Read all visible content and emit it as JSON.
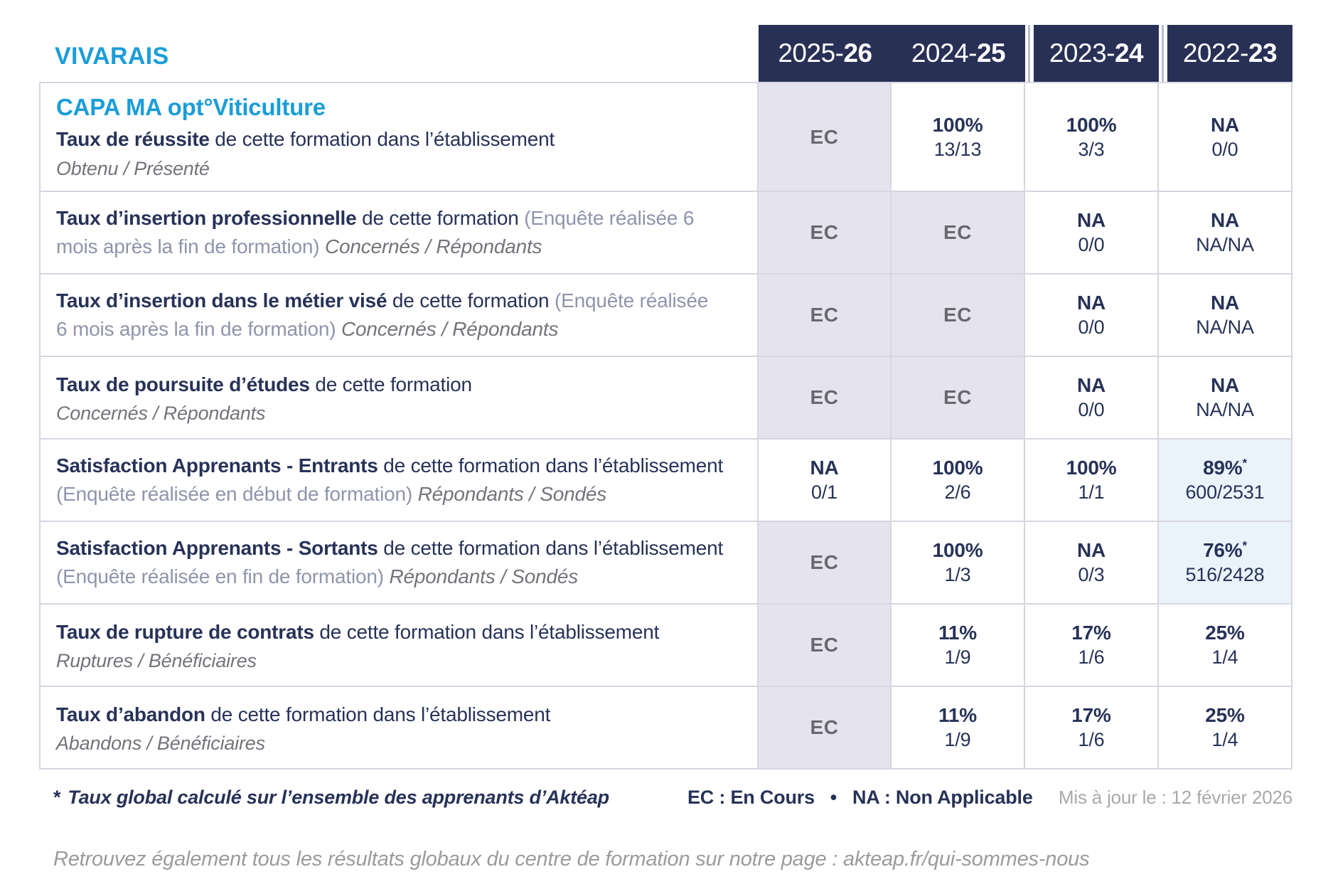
{
  "brand": "VIVARAIS",
  "colors": {
    "brand_blue": "#1b9dd9",
    "header_navy": "#293056",
    "text_navy": "#273258",
    "ec_text_gray": "#68686e",
    "ec_cell_bg": "#e5e4ee",
    "highlight_cell_bg": "#eaf3fa",
    "note_lavender": "#9094ab",
    "subtitle_gray": "#73737a",
    "border_gray": "#d6d6e0",
    "muted_gray": "#a9a9ab"
  },
  "header": {
    "years": [
      {
        "pre": "2025-",
        "bold": "26"
      },
      {
        "pre": "2024-",
        "bold": "25"
      },
      {
        "pre": "2023-",
        "bold": "24"
      },
      {
        "pre": "2022-",
        "bold": "23"
      }
    ]
  },
  "rows": [
    {
      "program": "CAPA MA opt°Viticulture",
      "title": "Taux de réussite",
      "desc": " de cette formation dans l’établissement",
      "note": "",
      "sub_inline": "",
      "sub_block": "Obtenu / Présenté",
      "cells": [
        {
          "value": "EC",
          "frac": "",
          "star": "",
          "variant": "ec"
        },
        {
          "value": "100%",
          "frac": "13/13",
          "star": "",
          "variant": "plain"
        },
        {
          "value": "100%",
          "frac": "3/3",
          "star": "",
          "variant": "plain"
        },
        {
          "value": "NA",
          "frac": "0/0",
          "star": "",
          "variant": "plain"
        }
      ]
    },
    {
      "program": "",
      "title": "Taux d’insertion professionnelle",
      "desc": " de cette formation ",
      "note": "(Enquête réalisée 6 mois après la fin de formation) ",
      "sub_inline": "Concernés / Répondants",
      "sub_block": "",
      "cells": [
        {
          "value": "EC",
          "frac": "",
          "star": "",
          "variant": "ec"
        },
        {
          "value": "EC",
          "frac": "",
          "star": "",
          "variant": "ec"
        },
        {
          "value": "NA",
          "frac": "0/0",
          "star": "",
          "variant": "plain"
        },
        {
          "value": "NA",
          "frac": "NA/NA",
          "star": "",
          "variant": "plain"
        }
      ]
    },
    {
      "program": "",
      "title": "Taux d’insertion dans le métier visé",
      "desc": " de cette formation ",
      "note": "(Enquête réalisée 6 mois après la fin de formation) ",
      "sub_inline": "Concernés / Répondants",
      "sub_block": "",
      "cells": [
        {
          "value": "EC",
          "frac": "",
          "star": "",
          "variant": "ec"
        },
        {
          "value": "EC",
          "frac": "",
          "star": "",
          "variant": "ec"
        },
        {
          "value": "NA",
          "frac": "0/0",
          "star": "",
          "variant": "plain"
        },
        {
          "value": "NA",
          "frac": "NA/NA",
          "star": "",
          "variant": "plain"
        }
      ]
    },
    {
      "program": "",
      "title": "Taux de poursuite d’études",
      "desc": " de cette formation",
      "note": "",
      "sub_inline": "",
      "sub_block": "Concernés / Répondants",
      "cells": [
        {
          "value": "EC",
          "frac": "",
          "star": "",
          "variant": "ec"
        },
        {
          "value": "EC",
          "frac": "",
          "star": "",
          "variant": "ec"
        },
        {
          "value": "NA",
          "frac": "0/0",
          "star": "",
          "variant": "plain"
        },
        {
          "value": "NA",
          "frac": "NA/NA",
          "star": "",
          "variant": "plain"
        }
      ]
    },
    {
      "program": "",
      "title": "Satisfaction Apprenants - Entrants",
      "desc": " de cette formation dans l’établissement ",
      "note": "(Enquête réalisée en début de formation) ",
      "sub_inline": "Répondants / Sondés",
      "sub_block": "",
      "cells": [
        {
          "value": "NA",
          "frac": "0/1",
          "star": "",
          "variant": "plain"
        },
        {
          "value": "100%",
          "frac": "2/6",
          "star": "",
          "variant": "plain"
        },
        {
          "value": "100%",
          "frac": "1/1",
          "star": "",
          "variant": "plain"
        },
        {
          "value": "89%",
          "frac": "600/2531",
          "star": "*",
          "variant": "hl"
        }
      ]
    },
    {
      "program": "",
      "title": "Satisfaction Apprenants - Sortants",
      "desc": " de cette formation dans l’établissement ",
      "note": "(Enquête réalisée en fin de formation) ",
      "sub_inline": "Répondants / Sondés",
      "sub_block": "",
      "cells": [
        {
          "value": "EC",
          "frac": "",
          "star": "",
          "variant": "ec"
        },
        {
          "value": "100%",
          "frac": "1/3",
          "star": "",
          "variant": "plain"
        },
        {
          "value": "NA",
          "frac": "0/3",
          "star": "",
          "variant": "plain"
        },
        {
          "value": "76%",
          "frac": "516/2428",
          "star": "*",
          "variant": "hl"
        }
      ]
    },
    {
      "program": "",
      "title": "Taux de rupture de contrats",
      "desc": " de cette formation dans l’établissement",
      "note": "",
      "sub_inline": "",
      "sub_block": "Ruptures / Bénéficiaires",
      "cells": [
        {
          "value": "EC",
          "frac": "",
          "star": "",
          "variant": "ec"
        },
        {
          "value": "11%",
          "frac": "1/9",
          "star": "",
          "variant": "plain"
        },
        {
          "value": "17%",
          "frac": "1/6",
          "star": "",
          "variant": "plain"
        },
        {
          "value": "25%",
          "frac": "1/4",
          "star": "",
          "variant": "plain"
        }
      ]
    },
    {
      "program": "",
      "title": "Taux d’abandon",
      "desc": " de cette formation dans l’établissement",
      "note": "",
      "sub_inline": "",
      "sub_block": "Abandons / Bénéficiaires",
      "cells": [
        {
          "value": "EC",
          "frac": "",
          "star": "",
          "variant": "ec"
        },
        {
          "value": "11%",
          "frac": "1/9",
          "star": "",
          "variant": "plain"
        },
        {
          "value": "17%",
          "frac": "1/6",
          "star": "",
          "variant": "plain"
        },
        {
          "value": "25%",
          "frac": "1/4",
          "star": "",
          "variant": "plain"
        }
      ]
    }
  ],
  "footer": {
    "star": "*",
    "footnote": "Taux global calculé sur l’ensemble des apprenants d’Aktéap",
    "legend": "EC : En Cours   •   NA : Non Applicable",
    "updated": "Mis à jour le : 12 février 2026",
    "bottom_note": "Retrouvez également tous les résultats globaux du centre de formation sur notre page : akteap.fr/qui-sommes-nous"
  }
}
